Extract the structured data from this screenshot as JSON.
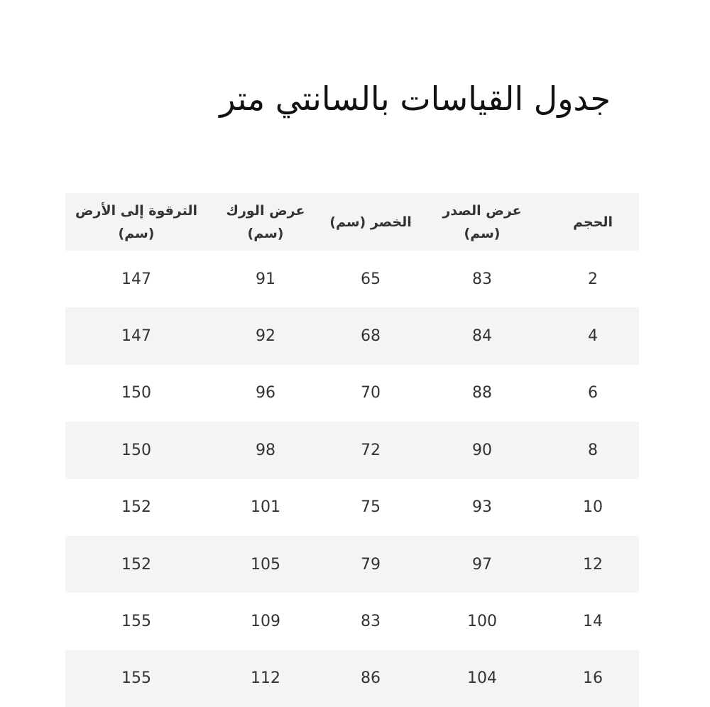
{
  "title": "جدول القياسات بالسانتي متر",
  "headers": [
    {
      "line1": "الحجم",
      "line2": ""
    },
    {
      "line1": "عرض الصدر",
      "line2": "(سم)"
    },
    {
      "line1": "الخصر (سم)",
      "line2": ""
    },
    {
      "line1": "عرض الورك",
      "line2": "(سم)"
    },
    {
      "line1": "الترقوة إلى الأرض",
      "line2": "(سم)"
    }
  ],
  "rows": [
    [
      "2",
      "83",
      "65",
      "91",
      "147"
    ],
    [
      "4",
      "84",
      "68",
      "92",
      "147"
    ],
    [
      "6",
      "88",
      "70",
      "96",
      "150"
    ],
    [
      "8",
      "90",
      "72",
      "98",
      "150"
    ],
    [
      "10",
      "93",
      "75",
      "101",
      "152"
    ],
    [
      "12",
      "97",
      "79",
      "105",
      "152"
    ],
    [
      "14",
      "100",
      "83",
      "109",
      "155"
    ],
    [
      "16",
      "104",
      "86",
      "112",
      "155"
    ]
  ],
  "colors": {
    "row_stripe": "#f4f4f4",
    "text": "#333333"
  }
}
